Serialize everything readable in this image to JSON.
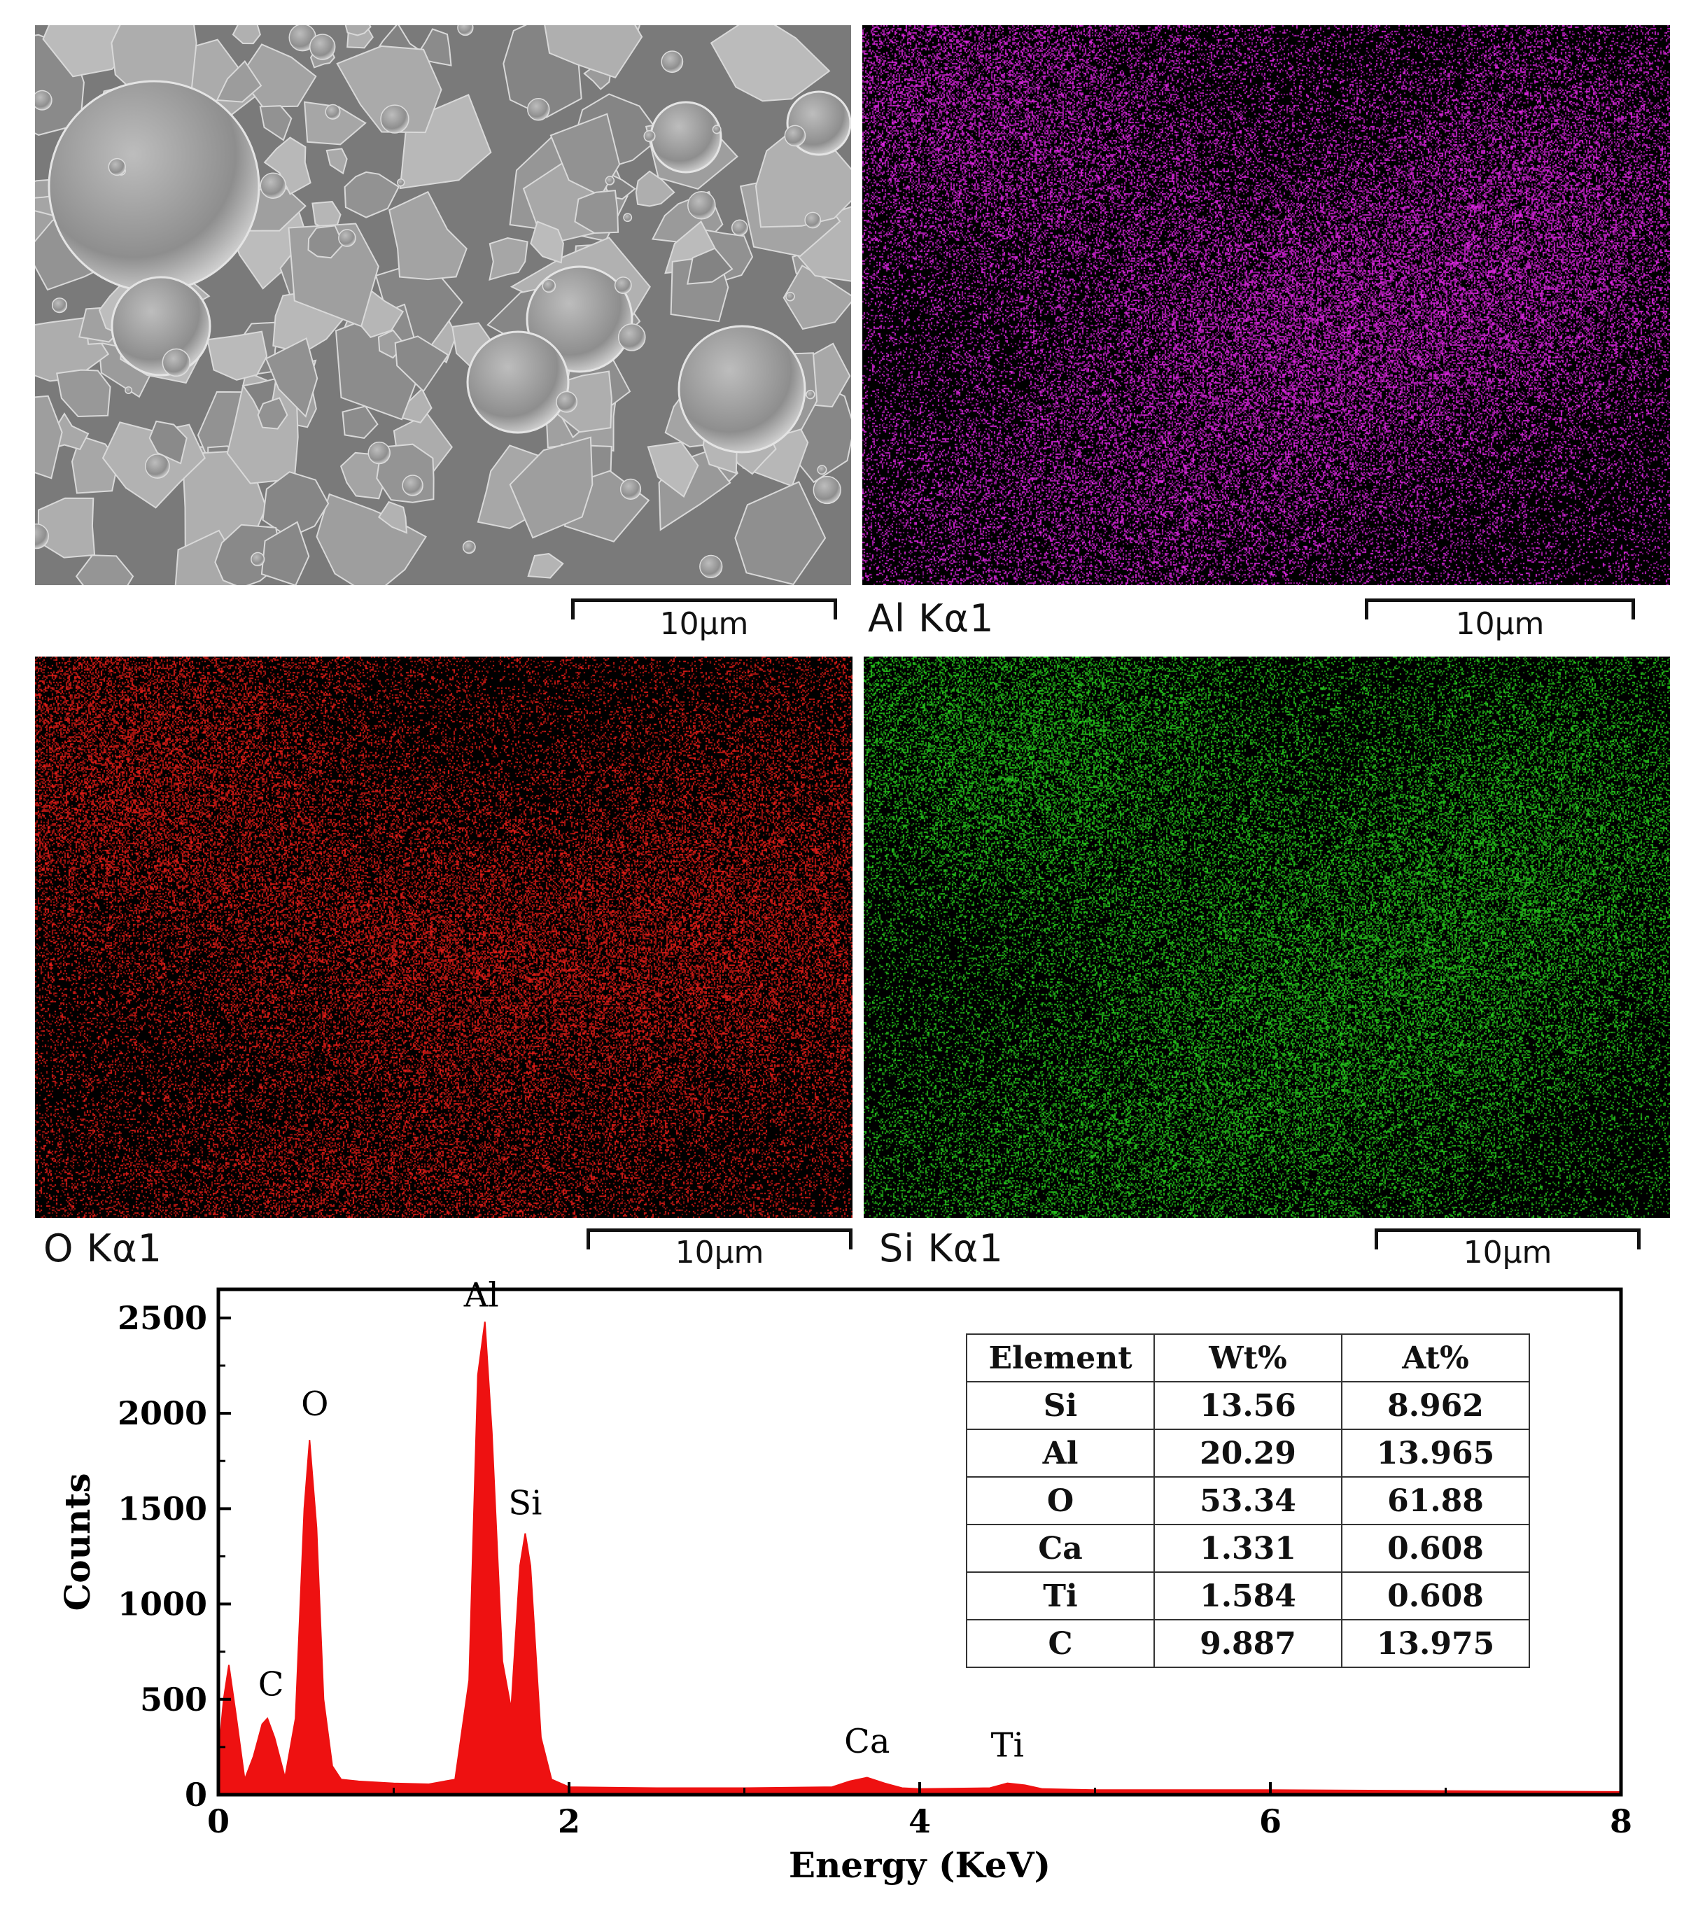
{
  "panels": [
    {
      "id": "sem",
      "label": "",
      "scale": "10μm",
      "color": "#9a9a9a"
    },
    {
      "id": "al",
      "label": "Al Kα1",
      "scale": "10μm",
      "color": "#e21ee6"
    },
    {
      "id": "o",
      "label": "O Kα1",
      "scale": "10μm",
      "color": "#ee1a14"
    },
    {
      "id": "si",
      "label": "Si Kα1",
      "scale": "10μm",
      "color": "#22c418"
    }
  ],
  "chart_data": {
    "type": "line",
    "xlabel": "Energy (KeV)",
    "ylabel": "Counts",
    "xlim": [
      0,
      8
    ],
    "ylim": [
      0,
      2650
    ],
    "xticks": [
      0,
      2,
      4,
      6,
      8
    ],
    "yticks": [
      0,
      500,
      1000,
      1500,
      2000,
      2500
    ],
    "fill_color": "#ee1111",
    "series": [
      {
        "x": [
          0.0,
          0.03,
          0.06,
          0.1,
          0.15,
          0.2,
          0.25,
          0.28,
          0.32,
          0.38,
          0.44,
          0.49,
          0.52,
          0.56,
          0.6,
          0.65,
          0.7,
          0.8,
          1.0,
          1.2,
          1.35,
          1.43,
          1.48,
          1.52,
          1.56,
          1.62,
          1.67,
          1.72,
          1.75,
          1.78,
          1.84,
          1.9,
          2.0,
          2.5,
          3.0,
          3.5,
          3.6,
          3.7,
          3.8,
          3.9,
          4.0,
          4.4,
          4.5,
          4.6,
          4.7,
          5.0,
          6.0,
          7.0,
          8.0
        ],
        "y": [
          200,
          500,
          680,
          420,
          80,
          200,
          370,
          400,
          300,
          90,
          400,
          1500,
          1860,
          1400,
          500,
          150,
          80,
          70,
          60,
          55,
          80,
          600,
          2200,
          2480,
          1900,
          700,
          450,
          1200,
          1370,
          1200,
          300,
          80,
          40,
          35,
          35,
          40,
          70,
          90,
          60,
          35,
          30,
          35,
          60,
          50,
          30,
          25,
          25,
          20,
          15
        ]
      }
    ],
    "peak_labels": [
      {
        "text": "C",
        "x": 0.3,
        "y": 520
      },
      {
        "text": "O",
        "x": 0.55,
        "y": 1990
      },
      {
        "text": "Al",
        "x": 1.5,
        "y": 2560
      },
      {
        "text": "Si",
        "x": 1.75,
        "y": 1470
      },
      {
        "text": "Ca",
        "x": 3.7,
        "y": 220
      },
      {
        "text": "Ti",
        "x": 4.5,
        "y": 200
      }
    ],
    "table": {
      "headers": [
        "Element",
        "Wt%",
        "At%"
      ],
      "rows": [
        [
          "Si",
          "13.56",
          "8.962"
        ],
        [
          "Al",
          "20.29",
          "13.965"
        ],
        [
          "O",
          "53.34",
          "61.88"
        ],
        [
          "Ca",
          "1.331",
          "0.608"
        ],
        [
          "Ti",
          "1.584",
          "0.608"
        ],
        [
          "C",
          "9.887",
          "13.975"
        ]
      ]
    }
  }
}
